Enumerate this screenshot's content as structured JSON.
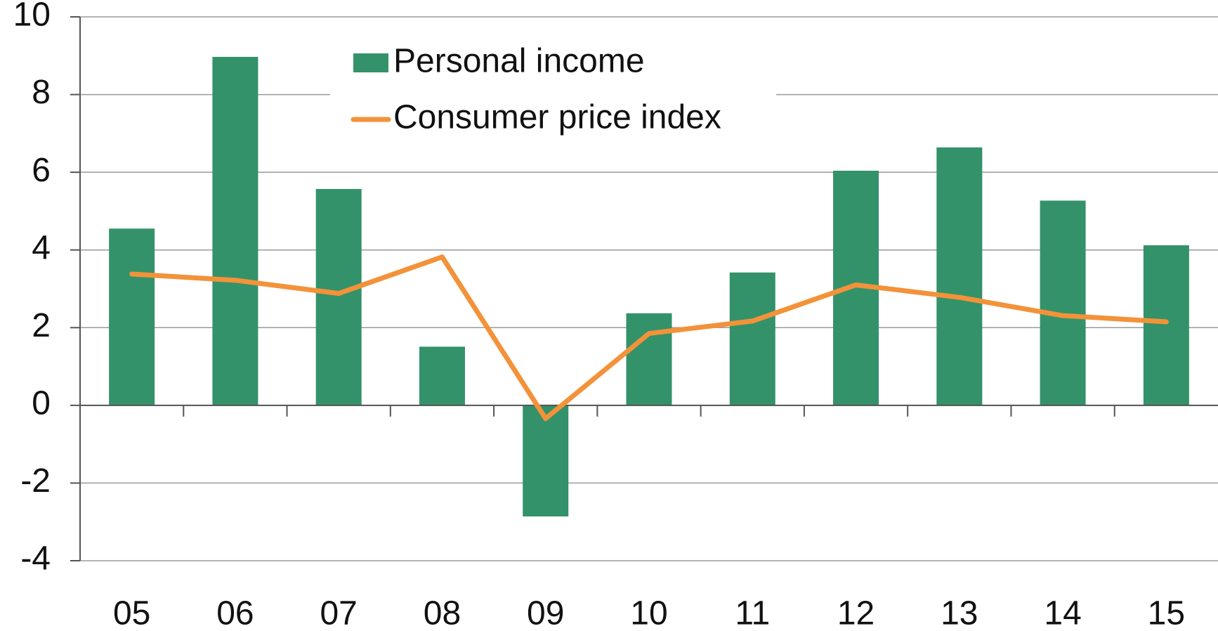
{
  "chart_data": {
    "type": "bar_line",
    "categories": [
      "05",
      "06",
      "07",
      "08",
      "09",
      "10",
      "11",
      "12",
      "13",
      "14",
      "15"
    ],
    "series": [
      {
        "name": "Personal income",
        "type": "bar",
        "color": "#33926a",
        "values": [
          4.55,
          8.97,
          5.57,
          1.51,
          -2.86,
          2.37,
          3.42,
          6.04,
          6.64,
          5.27,
          4.12
        ]
      },
      {
        "name": "Consumer price index",
        "type": "line",
        "color": "#f39239",
        "values": [
          3.38,
          3.22,
          2.88,
          3.82,
          -0.34,
          1.85,
          2.17,
          3.1,
          2.78,
          2.31,
          2.15
        ]
      }
    ],
    "ylim": [
      -4,
      10
    ],
    "yticks": [
      -4,
      -2,
      0,
      2,
      4,
      6,
      8,
      10
    ],
    "grid": true,
    "legend": "top"
  }
}
